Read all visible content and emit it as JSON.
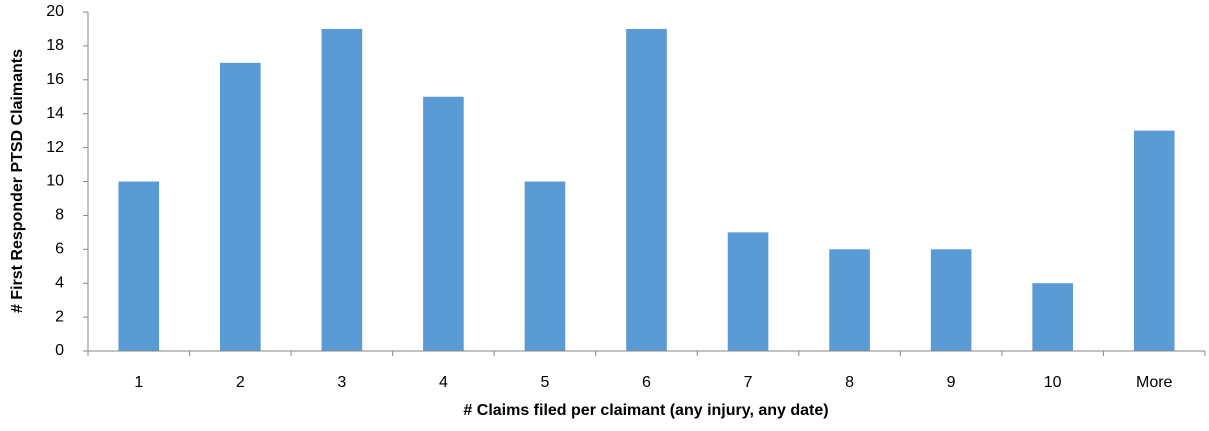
{
  "chart_data": {
    "type": "bar",
    "x_label": "# Claims filed per claimant (any injury, any date)",
    "y_label": "# First Responder PTSD Claimants",
    "categories": [
      "1",
      "2",
      "3",
      "4",
      "5",
      "6",
      "7",
      "8",
      "9",
      "10",
      "More"
    ],
    "values": [
      10,
      17,
      19,
      15,
      10,
      19,
      7,
      6,
      6,
      4,
      13
    ],
    "color": "#5b9bd5",
    "ylim": [
      0,
      20
    ],
    "yticks": [
      0,
      2,
      4,
      6,
      8,
      10,
      12,
      14,
      16,
      18,
      20
    ],
    "grid": false
  }
}
